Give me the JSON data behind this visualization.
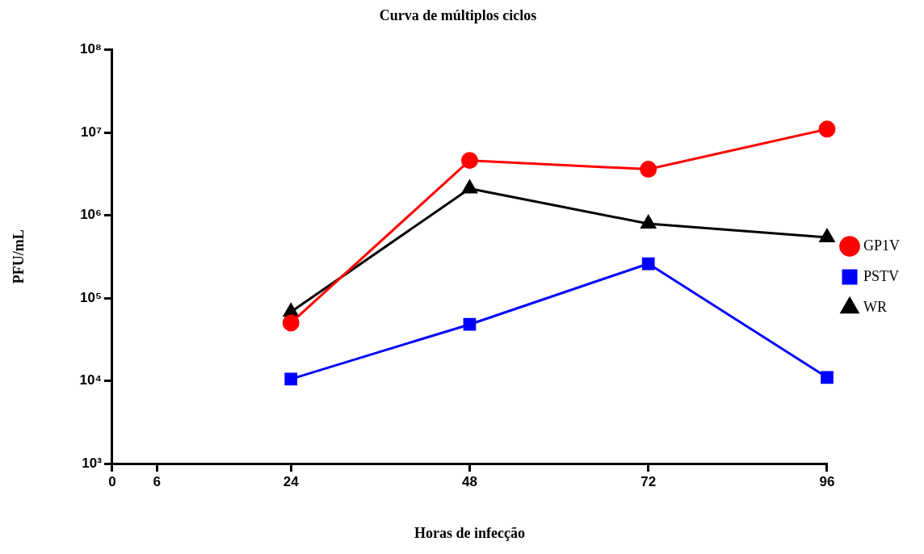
{
  "chart_data": {
    "type": "line",
    "title": "Curva de múltiplos ciclos",
    "xlabel": "Horas de infecção",
    "ylabel": "PFU/mL",
    "log": "y",
    "grid": false,
    "legend": "right",
    "xlim": [
      0,
      96
    ],
    "xticks": [
      0,
      6,
      24,
      48,
      72,
      96
    ],
    "ylim": [
      1000,
      100000000
    ],
    "yticks": [
      {
        "value": 1000,
        "label": "10³"
      },
      {
        "value": 10000,
        "label": "10⁴"
      },
      {
        "value": 100000,
        "label": "10⁵"
      },
      {
        "value": 1000000,
        "label": "10⁶"
      },
      {
        "value": 10000000,
        "label": "10⁷"
      },
      {
        "value": 100000000,
        "label": "10⁸"
      }
    ],
    "x": [
      24,
      48,
      72,
      96
    ],
    "series": [
      {
        "name": "GP1V",
        "color": "#ff0000",
        "marker": "circle",
        "values": [
          50000,
          4600000,
          3600000,
          11000000
        ]
      },
      {
        "name": "PSTV",
        "color": "#0000ff",
        "marker": "square",
        "values": [
          10500,
          48000,
          260000,
          11000
        ]
      },
      {
        "name": "WR",
        "color": "#000000",
        "marker": "triangle",
        "values": [
          68000,
          2100000,
          790000,
          540000
        ]
      }
    ]
  }
}
